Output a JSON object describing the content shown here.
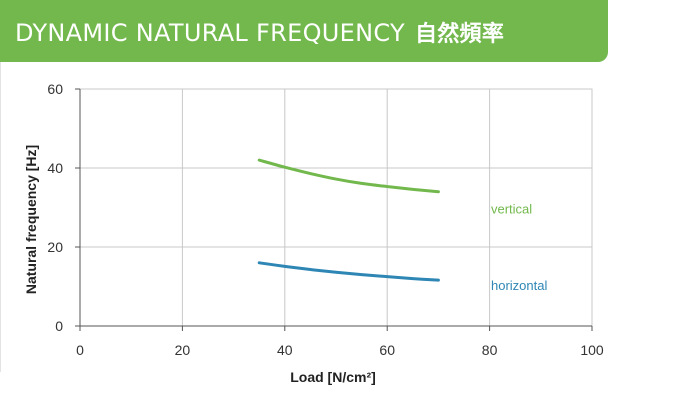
{
  "header": {
    "title": "DYNAMIC NATURAL FREQUENCY",
    "title_cjk": "自然頻率"
  },
  "colors": {
    "header_bg": "#72b84d",
    "vertical": "#72b84d",
    "horizontal": "#2e86b4",
    "grid": "#c8c8c8",
    "axis": "#555555"
  },
  "chart_data": {
    "type": "line",
    "xlabel": "Load [N/cm²]",
    "ylabel": "Natural frequency [Hz]",
    "xlim": [
      0,
      100
    ],
    "ylim": [
      0,
      60
    ],
    "x_ticks": [
      "0",
      "20",
      "40",
      "60",
      "80",
      "100"
    ],
    "y_ticks": [
      "0",
      "20",
      "40",
      "60"
    ],
    "grid": true,
    "series": [
      {
        "name": "vertical",
        "color": "#72b84d",
        "points": [
          [
            35,
            42
          ],
          [
            40,
            40.2
          ],
          [
            45,
            38.6
          ],
          [
            50,
            37.2
          ],
          [
            55,
            36.1
          ],
          [
            60,
            35.3
          ],
          [
            65,
            34.6
          ],
          [
            70,
            34
          ]
        ]
      },
      {
        "name": "horizontal",
        "color": "#2e86b4",
        "points": [
          [
            35,
            16
          ],
          [
            40,
            15.1
          ],
          [
            45,
            14.3
          ],
          [
            50,
            13.6
          ],
          [
            55,
            13
          ],
          [
            60,
            12.5
          ],
          [
            65,
            12
          ],
          [
            70,
            11.6
          ]
        ]
      }
    ]
  }
}
